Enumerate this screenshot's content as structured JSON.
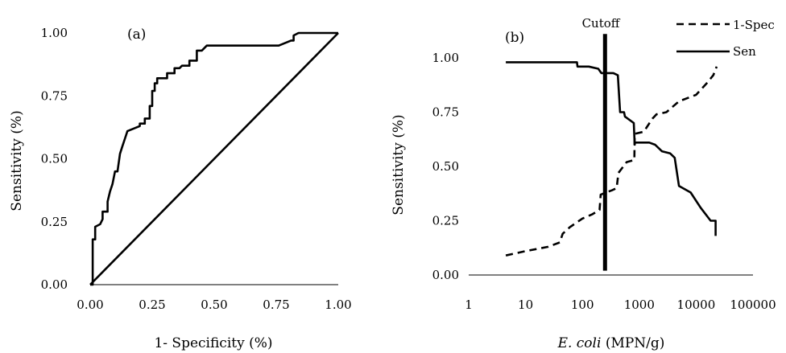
{
  "chart_data": [
    {
      "type": "line",
      "panel_label": "(a)",
      "xlabel": "1- Specificity (%)",
      "ylabel": "Sensitivity (%)",
      "xlim": [
        0,
        1
      ],
      "ylim": [
        0,
        1
      ],
      "x_ticks": [
        "0.00",
        "0.25",
        "0.50",
        "0.75",
        "1.00"
      ],
      "y_ticks": [
        "0.00",
        "0.25",
        "0.50",
        "0.75",
        "1.00"
      ],
      "grid": false,
      "series": [
        {
          "name": "",
          "style": "solid",
          "points": [
            [
              0,
              0
            ],
            [
              0.01,
              0
            ],
            [
              0.01,
              0.18
            ],
            [
              0.02,
              0.18
            ],
            [
              0.02,
              0.23
            ],
            [
              0.04,
              0.24
            ],
            [
              0.05,
              0.26
            ],
            [
              0.05,
              0.29
            ],
            [
              0.07,
              0.29
            ],
            [
              0.07,
              0.33
            ],
            [
              0.08,
              0.37
            ],
            [
              0.09,
              0.4
            ],
            [
              0.1,
              0.45
            ],
            [
              0.11,
              0.45
            ],
            [
              0.12,
              0.52
            ],
            [
              0.13,
              0.55
            ],
            [
              0.14,
              0.58
            ],
            [
              0.15,
              0.61
            ],
            [
              0.2,
              0.63
            ],
            [
              0.2,
              0.64
            ],
            [
              0.22,
              0.64
            ],
            [
              0.22,
              0.66
            ],
            [
              0.24,
              0.66
            ],
            [
              0.24,
              0.71
            ],
            [
              0.25,
              0.71
            ],
            [
              0.25,
              0.77
            ],
            [
              0.26,
              0.77
            ],
            [
              0.26,
              0.8
            ],
            [
              0.27,
              0.8
            ],
            [
              0.27,
              0.82
            ],
            [
              0.31,
              0.82
            ],
            [
              0.31,
              0.84
            ],
            [
              0.34,
              0.84
            ],
            [
              0.34,
              0.86
            ],
            [
              0.36,
              0.86
            ],
            [
              0.37,
              0.87
            ],
            [
              0.4,
              0.87
            ],
            [
              0.4,
              0.89
            ],
            [
              0.43,
              0.89
            ],
            [
              0.43,
              0.93
            ],
            [
              0.45,
              0.93
            ],
            [
              0.47,
              0.95
            ],
            [
              0.76,
              0.95
            ],
            [
              0.81,
              0.97
            ],
            [
              0.82,
              0.97
            ],
            [
              0.82,
              0.99
            ],
            [
              0.84,
              1.0
            ],
            [
              1.0,
              1.0
            ]
          ]
        },
        {
          "name": "",
          "style": "solid",
          "points": [
            [
              0,
              0
            ],
            [
              1,
              1
            ]
          ]
        }
      ]
    },
    {
      "type": "line",
      "panel_label": "(b)",
      "xlabel_italic": "E. coli",
      "xlabel_rest": " (MPN/g)",
      "ylabel": "Sensitivity (%)",
      "xscale": "log",
      "xlim": [
        1,
        100000
      ],
      "ylim": [
        0,
        1.1
      ],
      "x_ticks": [
        {
          "value": 1,
          "label": "1"
        },
        {
          "value": 10,
          "label": "10"
        },
        {
          "value": 100,
          "label": "100"
        },
        {
          "value": 1000,
          "label": "1000"
        },
        {
          "value": 10000,
          "label": "10000"
        },
        {
          "value": 100000,
          "label": "100000"
        }
      ],
      "y_ticks": [
        {
          "value": 0,
          "label": "0.00"
        },
        {
          "value": 0.25,
          "label": "0.25"
        },
        {
          "value": 0.5,
          "label": "0.50"
        },
        {
          "value": 0.75,
          "label": "0.75"
        },
        {
          "value": 1.0,
          "label": "1.00"
        }
      ],
      "grid": false,
      "legend": "top-right",
      "cutoff": {
        "label": "Cutoff",
        "x": 250,
        "y_range": [
          0.02,
          1.11
        ]
      },
      "series": [
        {
          "name": "1-Spec",
          "style": "dashed",
          "points": [
            [
              4.5,
              0.09
            ],
            [
              10,
              0.11
            ],
            [
              25,
              0.13
            ],
            [
              40,
              0.15
            ],
            [
              45,
              0.19
            ],
            [
              60,
              0.22
            ],
            [
              100,
              0.26
            ],
            [
              150,
              0.28
            ],
            [
              200,
              0.3
            ],
            [
              210,
              0.37
            ],
            [
              260,
              0.38
            ],
            [
              330,
              0.39
            ],
            [
              400,
              0.4
            ],
            [
              430,
              0.47
            ],
            [
              600,
              0.52
            ],
            [
              820,
              0.53
            ],
            [
              830,
              0.65
            ],
            [
              1200,
              0.66
            ],
            [
              1700,
              0.72
            ],
            [
              2000,
              0.74
            ],
            [
              3000,
              0.75
            ],
            [
              5000,
              0.8
            ],
            [
              10000,
              0.83
            ],
            [
              15000,
              0.88
            ],
            [
              20000,
              0.92
            ],
            [
              23000,
              0.96
            ]
          ]
        },
        {
          "name": "Sen",
          "style": "solid",
          "points": [
            [
              4.5,
              0.98
            ],
            [
              80,
              0.98
            ],
            [
              82,
              0.96
            ],
            [
              130,
              0.96
            ],
            [
              190,
              0.95
            ],
            [
              215,
              0.93
            ],
            [
              350,
              0.93
            ],
            [
              420,
              0.92
            ],
            [
              460,
              0.75
            ],
            [
              540,
              0.75
            ],
            [
              560,
              0.73
            ],
            [
              800,
              0.7
            ],
            [
              830,
              0.6
            ],
            [
              840,
              0.61
            ],
            [
              1500,
              0.61
            ],
            [
              1900,
              0.6
            ],
            [
              2500,
              0.57
            ],
            [
              3500,
              0.56
            ],
            [
              4200,
              0.54
            ],
            [
              5000,
              0.41
            ],
            [
              8000,
              0.38
            ],
            [
              12000,
              0.31
            ],
            [
              18000,
              0.25
            ],
            [
              22000,
              0.25
            ],
            [
              22000,
              0.18
            ]
          ]
        }
      ]
    }
  ]
}
